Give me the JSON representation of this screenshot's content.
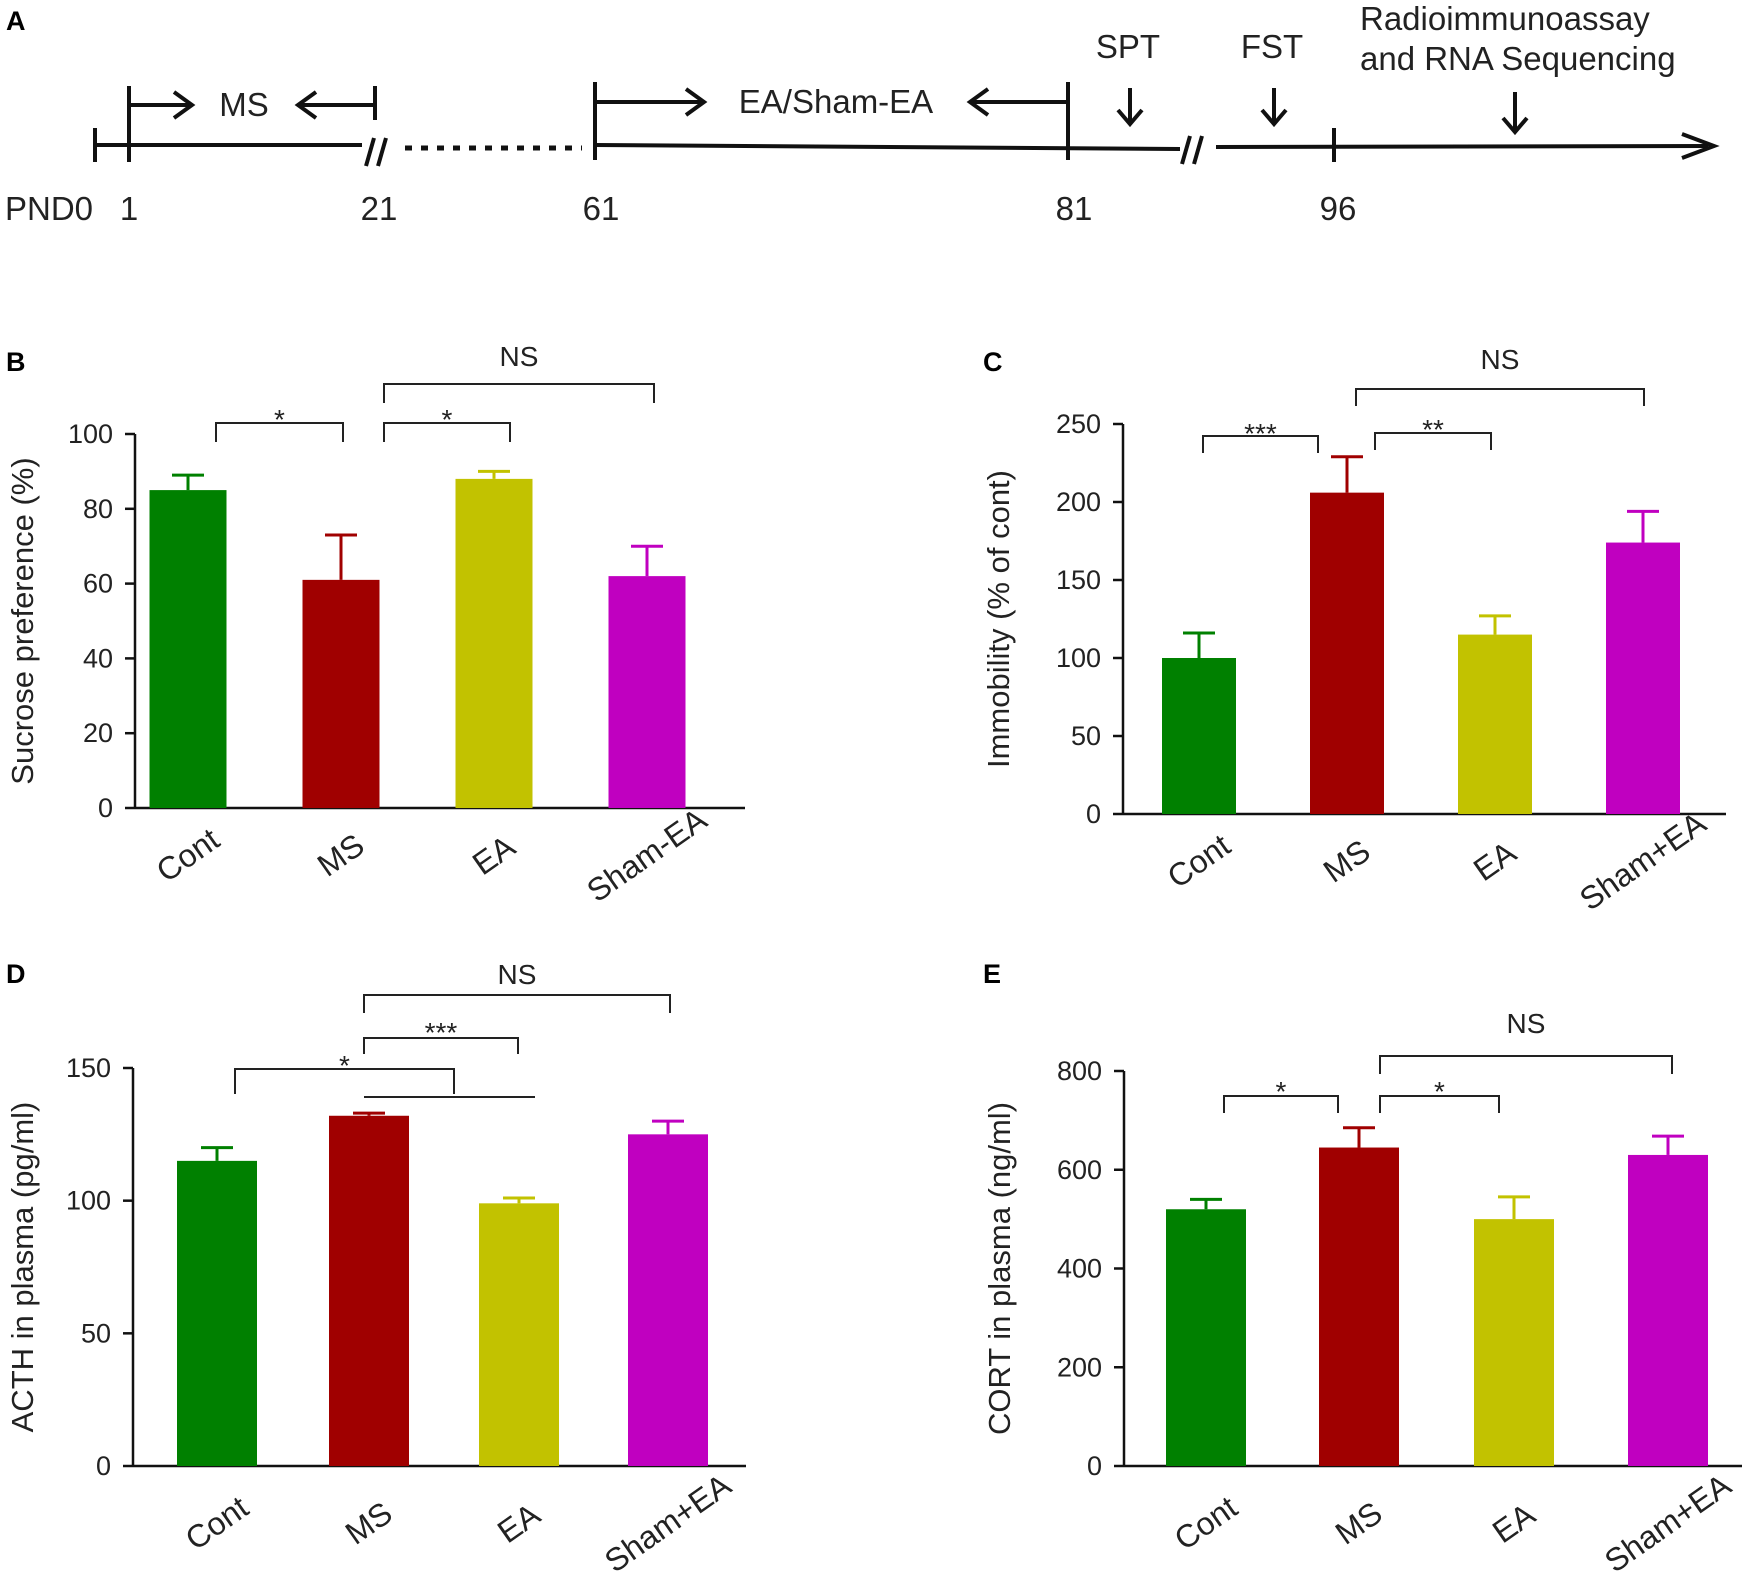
{
  "timeline": {
    "panel_label": "A",
    "start_label": "PND0",
    "day_labels": [
      "1",
      "21",
      "61",
      "81",
      "96"
    ],
    "phases": [
      {
        "label": "MS",
        "from_day": "1",
        "to_day": "21"
      },
      {
        "label": "EA/Sham-EA",
        "from_day": "61",
        "to_day": "81"
      }
    ],
    "events": [
      {
        "label": "SPT"
      },
      {
        "label": "FST"
      },
      {
        "label": "Radioimmunoassay and RNA Sequencing",
        "lines": [
          "Radioimmunoassay",
          "and RNA Sequencing"
        ]
      }
    ]
  },
  "colors": {
    "Cont": "#008000",
    "MS": "#a00000",
    "EA": "#c2c200",
    "Sham": "#c000c0"
  },
  "chart_data": [
    {
      "panel_label": "B",
      "type": "bar",
      "title": "",
      "xlabel": "",
      "ylabel": "Sucrose preference (%)",
      "categories": [
        "Cont",
        "MS",
        "EA",
        "Sham-EA"
      ],
      "values": [
        85,
        61,
        88,
        62
      ],
      "errors": [
        4,
        12,
        2,
        8
      ],
      "ylim": [
        0,
        100
      ],
      "yticks": [
        0,
        20,
        40,
        60,
        80,
        100
      ],
      "ytick_labels": [
        "0",
        "20",
        "40",
        "60",
        "80",
        "100"
      ],
      "significance": [
        {
          "from": 0,
          "to": 1,
          "label": "*"
        },
        {
          "from": 1,
          "to": 2,
          "label": "*"
        },
        {
          "from": 1,
          "to": 3,
          "label": "NS"
        }
      ]
    },
    {
      "panel_label": "C",
      "type": "bar",
      "title": "",
      "xlabel": "",
      "ylabel": "Immobility (% of cont)",
      "categories": [
        "Cont",
        "MS",
        "EA",
        "Sham+EA"
      ],
      "values": [
        100,
        206,
        115,
        174
      ],
      "errors": [
        16,
        23,
        12,
        20
      ],
      "ylim": [
        0,
        250
      ],
      "yticks": [
        0,
        50,
        100,
        150,
        200,
        250
      ],
      "ytick_labels": [
        "0",
        "50",
        "100",
        "150",
        "200",
        "250"
      ],
      "significance": [
        {
          "from": 0,
          "to": 1,
          "label": "***"
        },
        {
          "from": 1,
          "to": 2,
          "label": "**"
        },
        {
          "from": 1,
          "to": 3,
          "label": "NS"
        }
      ]
    },
    {
      "panel_label": "D",
      "type": "bar",
      "title": "",
      "xlabel": "",
      "ylabel": "ACTH in plasma (pg/ml)",
      "categories": [
        "Cont",
        "MS",
        "EA",
        "Sham+EA"
      ],
      "values": [
        115,
        132,
        99,
        125
      ],
      "errors": [
        5,
        1,
        2,
        5
      ],
      "ylim": [
        0,
        150
      ],
      "yticks": [
        0,
        50,
        100,
        150
      ],
      "ytick_labels": [
        "0",
        "50",
        "100",
        "150"
      ],
      "significance": [
        {
          "from": 0,
          "to": 1.6,
          "label": "*"
        },
        {
          "from": 1,
          "to": 2,
          "label": "***"
        },
        {
          "from": 1,
          "to": 3,
          "label": "NS"
        }
      ]
    },
    {
      "panel_label": "E",
      "type": "bar",
      "title": "",
      "xlabel": "",
      "ylabel": "CORT in plasma (ng/ml)",
      "categories": [
        "Cont",
        "MS",
        "EA",
        "Sham+EA"
      ],
      "values": [
        520,
        645,
        500,
        630
      ],
      "errors": [
        20,
        40,
        45,
        38
      ],
      "ylim": [
        0,
        800
      ],
      "yticks": [
        0,
        200,
        400,
        600,
        800
      ],
      "ytick_labels": [
        "0",
        "200",
        "400",
        "600",
        "800"
      ],
      "significance": [
        {
          "from": 0,
          "to": 1,
          "label": "*"
        },
        {
          "from": 1,
          "to": 2,
          "label": "*"
        },
        {
          "from": 1,
          "to": 3,
          "label": "NS"
        }
      ]
    }
  ]
}
